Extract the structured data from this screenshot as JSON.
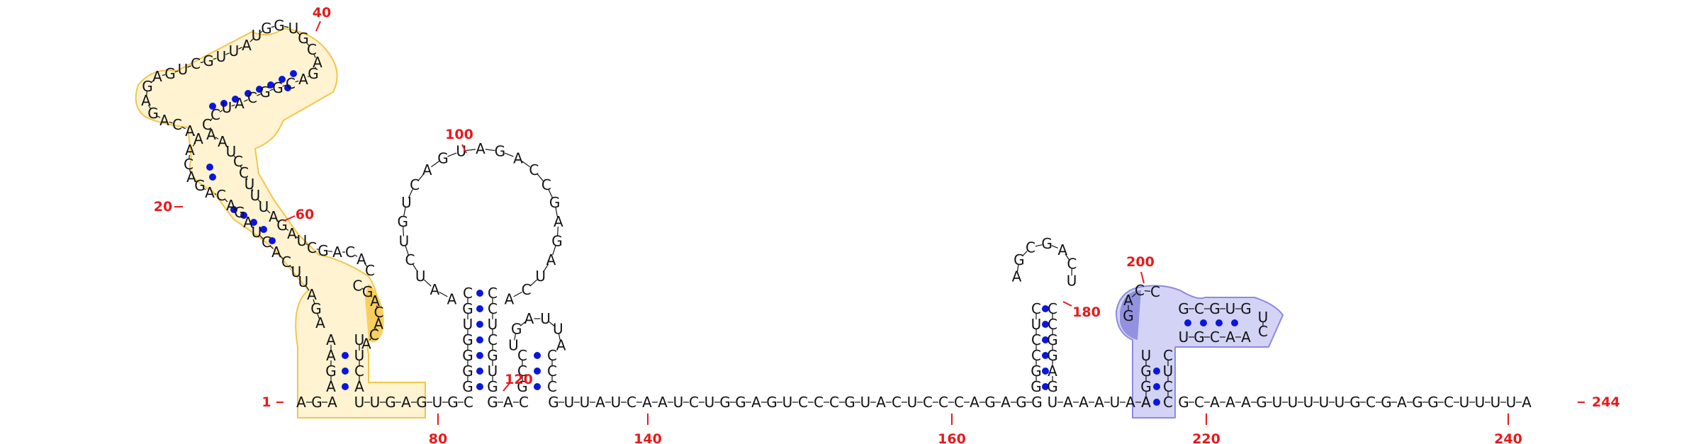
{
  "colors": {
    "numbering": "#e8191c",
    "base_pair": "#0a15e0",
    "domain_yellow": "#fff3d2",
    "domain_yellow_stroke": "#f2c64a",
    "domain_yellow_strong": "#f7c84a",
    "domain_blue": "#d3d3f6",
    "domain_blue_stroke": "#8a8ae4",
    "domain_blue_strong": "#8282dc",
    "nucleotide": "#111111"
  },
  "backbone": {
    "left": [
      "A",
      "G",
      "A"
    ],
    "mid": [
      "U",
      "U",
      "G",
      "A",
      "G",
      "U",
      "G",
      "C"
    ],
    "after_hairpin2": [
      "G",
      "A",
      "C"
    ],
    "long": [
      "G",
      "U",
      "U",
      "A",
      "U",
      "C",
      "A",
      "A",
      "U",
      "C",
      "U",
      "G",
      "G",
      "A",
      "G",
      "U",
      "C",
      "C",
      "C",
      "G",
      "U",
      "A",
      "C",
      "U",
      "C",
      "C",
      "C",
      "A",
      "G",
      "A",
      "G",
      "G"
    ],
    "mid2": [
      "U",
      "A",
      "A",
      "A",
      "U",
      "A",
      "A"
    ],
    "tail": [
      "G",
      "C",
      "A",
      "A",
      "A",
      "G",
      "U",
      "U",
      "U",
      "U",
      "U",
      "G",
      "C",
      "G",
      "A",
      "G",
      "G",
      "C",
      "U",
      "U",
      "U",
      "U",
      "A"
    ]
  },
  "domain1": {
    "stem_left": [
      "A",
      "G",
      "A",
      "A"
    ],
    "stem_right": [
      "U",
      "U",
      "C",
      "A"
    ],
    "loop": [
      "C",
      "G",
      "A",
      "C",
      "A",
      "C",
      "A"
    ],
    "left_strand": [
      "A",
      "G",
      "A",
      "U",
      "U",
      "C",
      "A",
      "C",
      "U",
      "A",
      "G",
      "A",
      "C",
      "A",
      "G",
      "A",
      "C",
      "A",
      "A",
      "A",
      "C",
      "A",
      "G",
      "A",
      "G",
      "A",
      "G",
      "U",
      "C",
      "G",
      "U",
      "U",
      "A",
      "U",
      "G",
      "G",
      "U",
      "G",
      "C",
      "A",
      "G",
      "A",
      "C",
      "G",
      "G",
      "C",
      "A",
      "U",
      "C",
      "C",
      "A",
      "A",
      "U",
      "C",
      "C",
      "U",
      "U",
      "U",
      "A",
      "G",
      "A",
      "U",
      "C",
      "G",
      "A",
      "C",
      "A",
      "C"
    ]
  },
  "hairpin_a": {
    "stem_left": [
      "G",
      "G",
      "G",
      "G",
      "U",
      "G",
      "C"
    ],
    "stem_right": [
      "C",
      "C",
      "U",
      "C",
      "G",
      "U",
      "G"
    ],
    "loop": [
      "A",
      "A",
      "U",
      "C",
      "U",
      "G",
      "U",
      "C",
      "A",
      "G",
      "U",
      "A",
      "G",
      "A",
      "C",
      "C",
      "G",
      "A",
      "G",
      "A",
      "U",
      "C",
      "A"
    ]
  },
  "hairpin_b": {
    "stem_left": [
      "G",
      "C",
      "C"
    ],
    "stem_right": [
      "C",
      "C",
      "C"
    ],
    "loop": [
      "U",
      "G",
      "A",
      "U",
      "U",
      "A"
    ]
  },
  "hairpin_c": {
    "stem_left": [
      "G",
      "G",
      "C",
      "C",
      "U",
      "C"
    ],
    "stem_right": [
      "C",
      "C",
      "G",
      "G",
      "A",
      "G"
    ],
    "loop": [
      "A",
      "G",
      "C",
      "G",
      "A",
      "C",
      "U"
    ]
  },
  "domain2": {
    "stem_left": [
      "A",
      "G",
      "G",
      "U"
    ],
    "stem_right": [
      "C",
      "U",
      "C",
      "C"
    ],
    "loop_left": [
      "G",
      "A",
      "C",
      "C"
    ],
    "arm_top": [
      "G",
      "C",
      "G",
      "U",
      "G"
    ],
    "arm_bottom": [
      "U",
      "G",
      "C",
      "A",
      "A"
    ],
    "arm_cap": [
      "U",
      "C"
    ]
  },
  "numbers": [
    "1",
    "20",
    "40",
    "60",
    "80",
    "100",
    "120",
    "140",
    "160",
    "180",
    "200",
    "220",
    "240",
    "244"
  ]
}
